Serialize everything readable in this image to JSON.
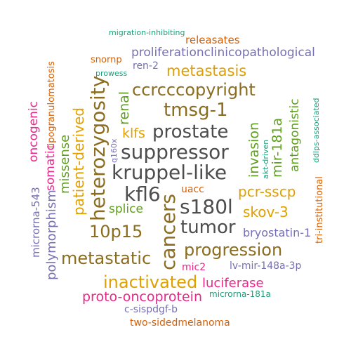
{
  "palette": {
    "gray": "#4d4d4d",
    "brown": "#8c6d1f",
    "gold": "#e0a000",
    "green": "#5f9e1f",
    "teal": "#1b9e77",
    "orange": "#d95f02",
    "purple": "#7570b3",
    "magenta": "#e7298a"
  },
  "words": [
    {
      "text": "migration-inhibiting",
      "color": "teal"
    },
    {
      "text": "releasates",
      "color": "orange"
    },
    {
      "text": "lipogranulomatosis",
      "color": "orange"
    },
    {
      "text": "snornp",
      "color": "orange"
    },
    {
      "text": "proliferationclinicopathological",
      "color": "purple"
    },
    {
      "text": "ren-2",
      "color": "purple"
    },
    {
      "text": "prowess",
      "color": "teal"
    },
    {
      "text": "metastasis",
      "color": "gold"
    },
    {
      "text": "heterozygosity",
      "color": "brown"
    },
    {
      "text": "renal",
      "color": "green"
    },
    {
      "text": "ccrcccopyright",
      "color": "brown"
    },
    {
      "text": "ddlps-associated",
      "color": "teal"
    },
    {
      "text": "tmsg-1",
      "color": "brown"
    },
    {
      "text": "oncogenic",
      "color": "magenta"
    },
    {
      "text": "patient-derived",
      "color": "gold"
    },
    {
      "text": "klfs",
      "color": "gold"
    },
    {
      "text": "prostate",
      "color": "gray"
    },
    {
      "text": "antagonistic",
      "color": "green"
    },
    {
      "text": "somatic",
      "color": "magenta"
    },
    {
      "text": "missense",
      "color": "green"
    },
    {
      "text": "q160x",
      "color": "purple"
    },
    {
      "text": "suppressor",
      "color": "gray"
    },
    {
      "text": "invasion",
      "color": "green"
    },
    {
      "text": "mir-181a",
      "color": "green"
    },
    {
      "text": "akt-driven",
      "color": "teal"
    },
    {
      "text": "kruppel-like",
      "color": "gray"
    },
    {
      "text": "microrna-543",
      "color": "purple"
    },
    {
      "text": "kfl6",
      "color": "gray"
    },
    {
      "text": "uacc",
      "color": "orange"
    },
    {
      "text": "pcr-sscp",
      "color": "gold"
    },
    {
      "text": "splice",
      "color": "green"
    },
    {
      "text": "s180l",
      "color": "gray"
    },
    {
      "text": "skov-3",
      "color": "gold"
    },
    {
      "text": "10p15",
      "color": "brown"
    },
    {
      "text": "tumor",
      "color": "gray"
    },
    {
      "text": "polymorphism",
      "color": "purple"
    },
    {
      "text": "cancers",
      "color": "brown"
    },
    {
      "text": "tri-institutional",
      "color": "orange"
    },
    {
      "text": "bryostatin-1",
      "color": "purple"
    },
    {
      "text": "progression",
      "color": "brown"
    },
    {
      "text": "metastatic",
      "color": "brown"
    },
    {
      "text": "mic2",
      "color": "magenta"
    },
    {
      "text": "lv-mir-148a-3p",
      "color": "purple"
    },
    {
      "text": "inactivated",
      "color": "gold"
    },
    {
      "text": "luciferase",
      "color": "magenta"
    },
    {
      "text": "proto-oncoprotein",
      "color": "magenta"
    },
    {
      "text": "microrna-181a",
      "color": "teal"
    },
    {
      "text": "c-sispdgf-b",
      "color": "purple"
    },
    {
      "text": "two-sidedmelanoma",
      "color": "orange"
    }
  ]
}
